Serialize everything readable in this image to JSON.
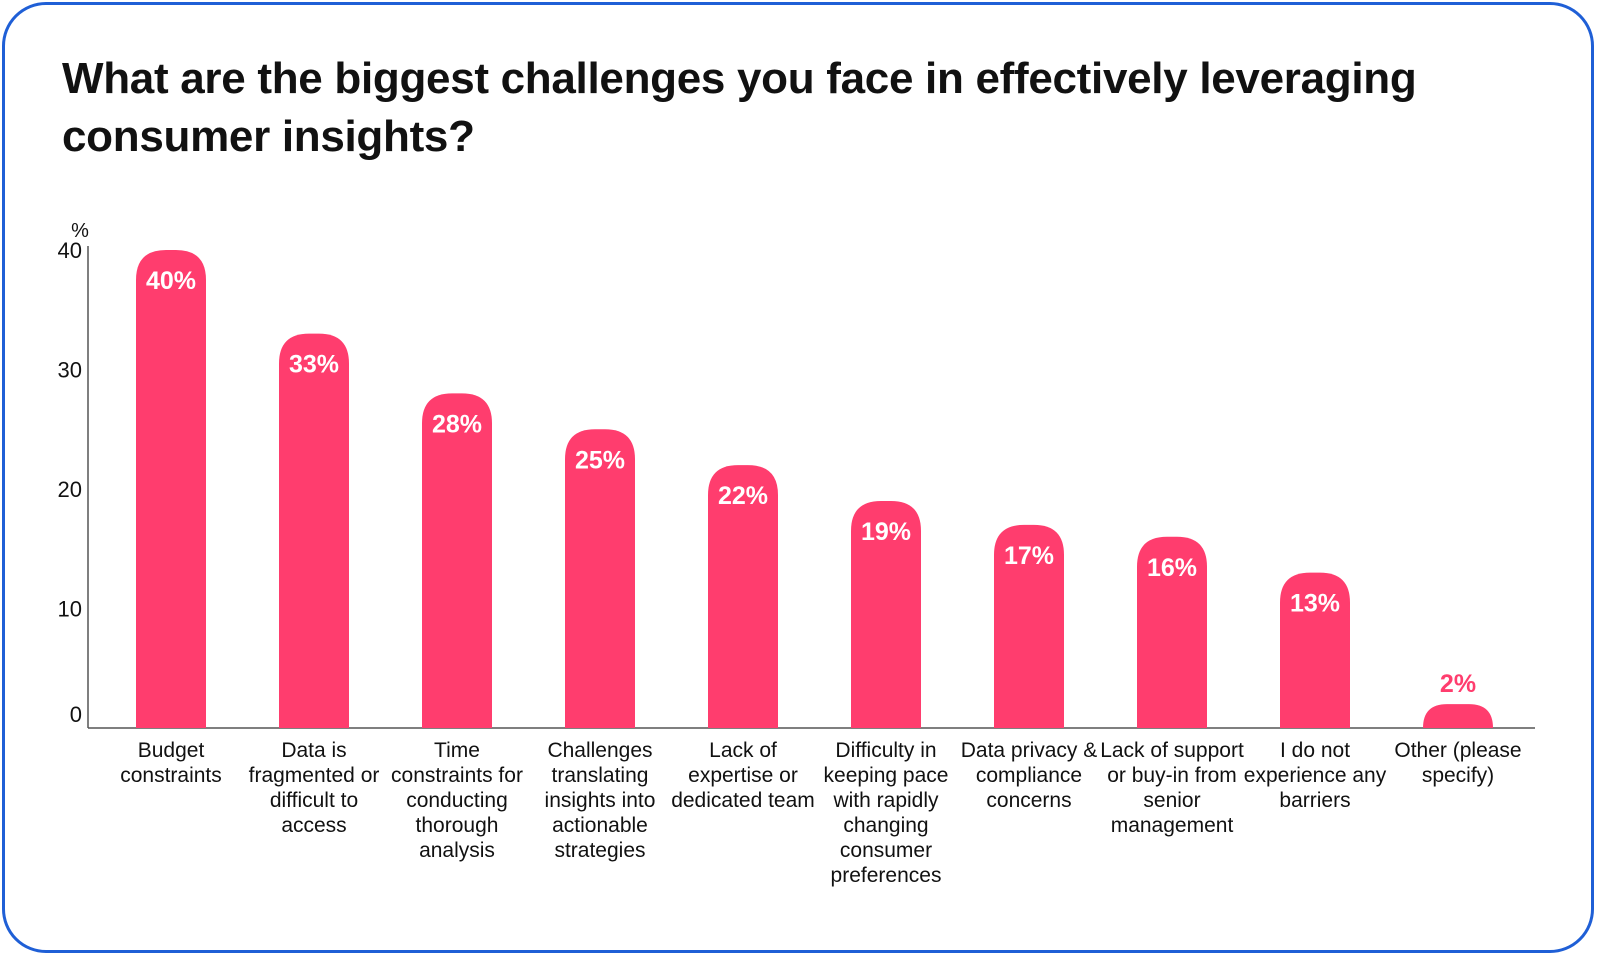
{
  "title": "What are the biggest challenges you face in effectively leveraging consumer insights?",
  "colors": {
    "bar": "#ff3d6e",
    "frame": "#1f5fd6",
    "text": "#111111",
    "axis": "#555555"
  },
  "chart_data": {
    "type": "bar",
    "title": "What are the biggest challenges you face in effectively leveraging consumer insights?",
    "ylabel": "%",
    "xlabel": "",
    "ylim": [
      0,
      40
    ],
    "yticks": [
      "0",
      "10",
      "20",
      "30",
      "40"
    ],
    "categories": [
      "Budget constraints",
      "Data is fragmented or difficult to access",
      "Time constraints for conducting thorough analysis",
      "Challenges translating insights into actionable strategies",
      "Lack of expertise or dedicated team",
      "Difficulty in keeping pace with rapidly changing consumer preferences",
      "Data privacy & compliance concerns",
      "Lack of support or buy-in from senior management",
      "I do not experience any barriers",
      "Other (please specify)"
    ],
    "values": [
      40,
      33,
      28,
      25,
      22,
      19,
      17,
      16,
      13,
      2
    ],
    "value_labels": [
      "40%",
      "33%",
      "28%",
      "25%",
      "22%",
      "19%",
      "17%",
      "16%",
      "13%",
      "2%"
    ],
    "grid": false,
    "legend": "none"
  }
}
